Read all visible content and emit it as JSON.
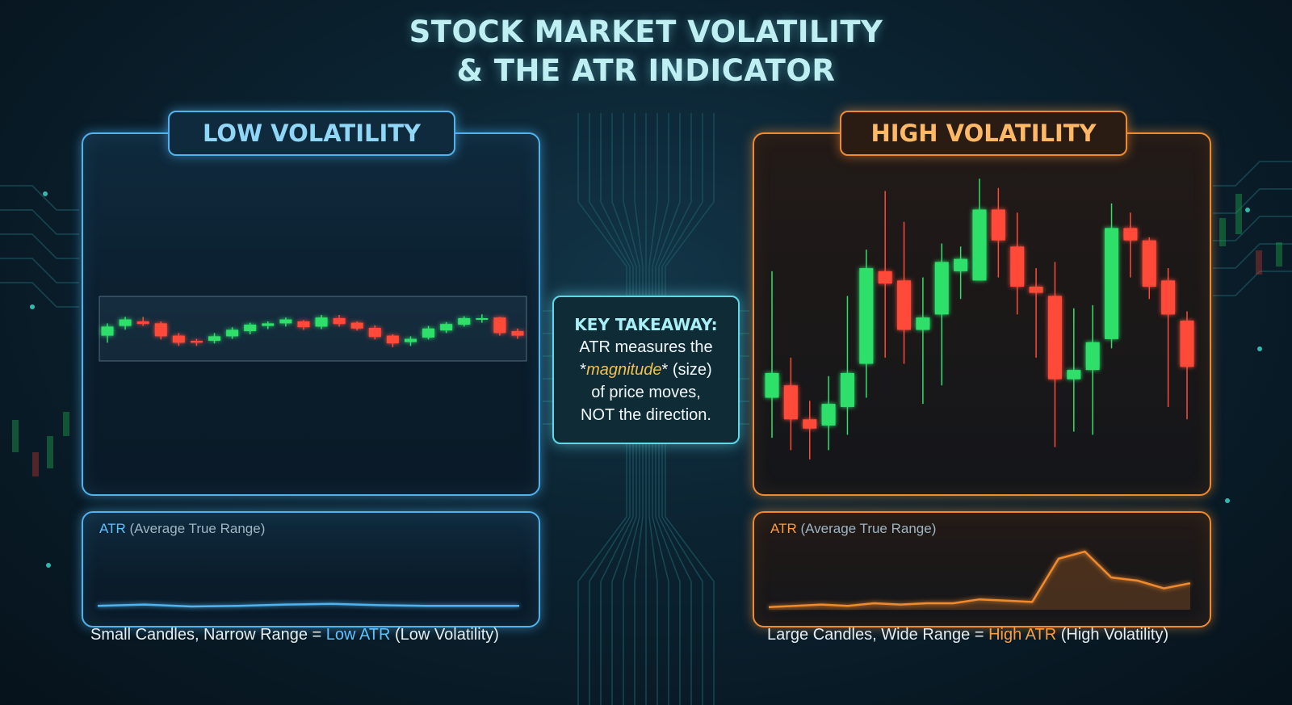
{
  "title": {
    "line1": "STOCK MARKET VOLATILITY",
    "line2": "& THE ATR INDICATOR"
  },
  "colors": {
    "bullish": "#2ee06a",
    "bearish": "#ff4a3a",
    "low_accent": "#4fb3f0",
    "high_accent": "#f08a2e",
    "highlight": "#f5c04a"
  },
  "key_takeaway": {
    "heading": "KEY TAKEAWAY:",
    "line1": "ATR measures the",
    "prefix": "*",
    "emphasis": "magnitude",
    "suffix": "* (size)",
    "line3": "of price moves,",
    "line4": "NOT the direction."
  },
  "low_panel": {
    "label": "LOW VOLATILITY",
    "atr_title_accent": "ATR",
    "atr_title_rest": " (Average True Range)",
    "caption_pre": "Small Candles, Narrow Range = ",
    "caption_hl": "Low ATR",
    "caption_post": " (Low Volatility)"
  },
  "high_panel": {
    "label": "HIGH VOLATILITY",
    "atr_title_accent": "ATR",
    "atr_title_rest": " (Average True Range)",
    "caption_pre": "Large Candles, Wide Range = ",
    "caption_hl": "High ATR",
    "caption_post": " (High Volatility)"
  },
  "chart_data": [
    {
      "type": "candlestick",
      "name_ref": "low_panel",
      "ylim": [
        0,
        100
      ],
      "candles": [
        {
          "o": 38,
          "h": 57,
          "l": 27,
          "c": 52
        },
        {
          "o": 53,
          "h": 67,
          "l": 47,
          "c": 63
        },
        {
          "o": 60,
          "h": 67,
          "l": 53,
          "c": 56
        },
        {
          "o": 57,
          "h": 60,
          "l": 32,
          "c": 37
        },
        {
          "o": 38,
          "h": 42,
          "l": 22,
          "c": 27
        },
        {
          "o": 30,
          "h": 33,
          "l": 22,
          "c": 27
        },
        {
          "o": 30,
          "h": 42,
          "l": 26,
          "c": 37
        },
        {
          "o": 37,
          "h": 51,
          "l": 33,
          "c": 47
        },
        {
          "o": 45,
          "h": 58,
          "l": 40,
          "c": 55
        },
        {
          "o": 53,
          "h": 60,
          "l": 48,
          "c": 57
        },
        {
          "o": 57,
          "h": 66,
          "l": 52,
          "c": 63
        },
        {
          "o": 60,
          "h": 62,
          "l": 47,
          "c": 51
        },
        {
          "o": 52,
          "h": 70,
          "l": 48,
          "c": 66
        },
        {
          "o": 65,
          "h": 70,
          "l": 52,
          "c": 56
        },
        {
          "o": 58,
          "h": 60,
          "l": 46,
          "c": 49
        },
        {
          "o": 50,
          "h": 54,
          "l": 32,
          "c": 36
        },
        {
          "o": 38,
          "h": 40,
          "l": 20,
          "c": 26
        },
        {
          "o": 28,
          "h": 37,
          "l": 22,
          "c": 33
        },
        {
          "o": 35,
          "h": 53,
          "l": 32,
          "c": 49
        },
        {
          "o": 46,
          "h": 59,
          "l": 42,
          "c": 56
        },
        {
          "o": 55,
          "h": 68,
          "l": 52,
          "c": 65
        },
        {
          "o": 63,
          "h": 71,
          "l": 58,
          "c": 65
        },
        {
          "o": 66,
          "h": 67,
          "l": 38,
          "c": 42
        },
        {
          "o": 45,
          "h": 49,
          "l": 33,
          "c": 38
        }
      ],
      "atr": [
        6,
        8,
        5,
        6,
        8,
        9,
        7,
        6,
        6,
        6
      ]
    },
    {
      "type": "candlestick",
      "name_ref": "high_panel",
      "ylim": [
        0,
        100
      ],
      "candles": [
        {
          "o": 25,
          "h": 66,
          "l": 12,
          "c": 33
        },
        {
          "o": 29,
          "h": 38,
          "l": 8,
          "c": 18
        },
        {
          "o": 18,
          "h": 24,
          "l": 5,
          "c": 15
        },
        {
          "o": 16,
          "h": 32,
          "l": 8,
          "c": 23
        },
        {
          "o": 22,
          "h": 58,
          "l": 13,
          "c": 33
        },
        {
          "o": 36,
          "h": 73,
          "l": 25,
          "c": 67
        },
        {
          "o": 66,
          "h": 92,
          "l": 38,
          "c": 62
        },
        {
          "o": 63,
          "h": 82,
          "l": 36,
          "c": 47
        },
        {
          "o": 47,
          "h": 64,
          "l": 23,
          "c": 51
        },
        {
          "o": 52,
          "h": 75,
          "l": 29,
          "c": 69
        },
        {
          "o": 66,
          "h": 74,
          "l": 57,
          "c": 70
        },
        {
          "o": 63,
          "h": 96,
          "l": 63,
          "c": 86
        },
        {
          "o": 86,
          "h": 93,
          "l": 64,
          "c": 76
        },
        {
          "o": 74,
          "h": 85,
          "l": 52,
          "c": 61
        },
        {
          "o": 61,
          "h": 67,
          "l": 38,
          "c": 59
        },
        {
          "o": 58,
          "h": 69,
          "l": 9,
          "c": 31
        },
        {
          "o": 31,
          "h": 54,
          "l": 14,
          "c": 34
        },
        {
          "o": 34,
          "h": 55,
          "l": 13,
          "c": 43
        },
        {
          "o": 44,
          "h": 88,
          "l": 41,
          "c": 80
        },
        {
          "o": 80,
          "h": 85,
          "l": 64,
          "c": 76
        },
        {
          "o": 76,
          "h": 77,
          "l": 57,
          "c": 61
        },
        {
          "o": 63,
          "h": 67,
          "l": 22,
          "c": 52
        },
        {
          "o": 50,
          "h": 53,
          "l": 18,
          "c": 35
        }
      ],
      "atr": [
        4,
        6,
        8,
        6,
        10,
        8,
        10,
        10,
        16,
        14,
        12,
        79,
        90,
        50,
        45,
        33,
        41
      ]
    }
  ]
}
